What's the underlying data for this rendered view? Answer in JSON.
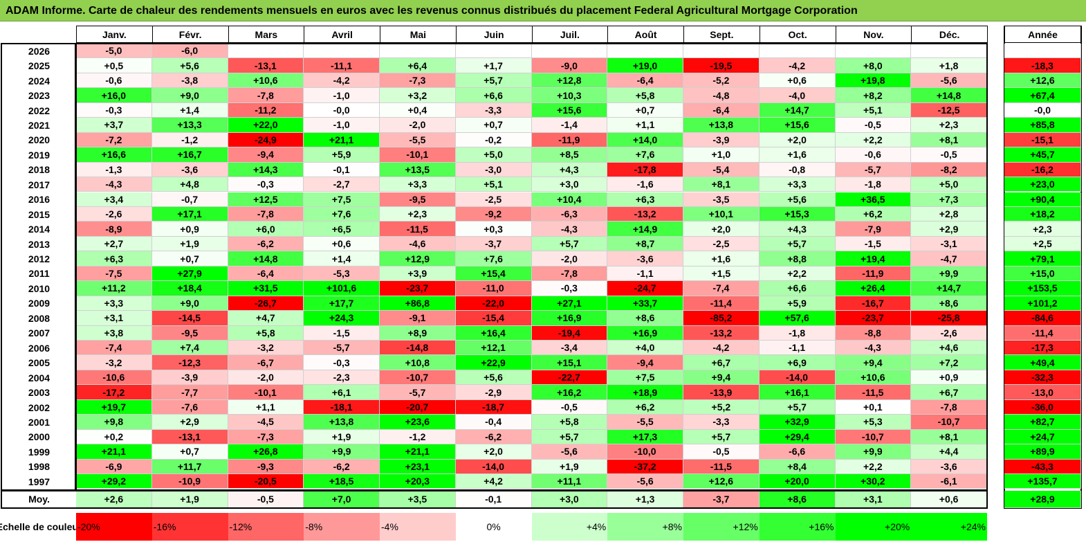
{
  "title": "ADAM Informe. Carte de chaleur des rendements mensuels en euros avec les revenus connus distribués du placement Federal Agricultural Mortgage Corporation",
  "chart_data": {
    "type": "heatmap",
    "months": [
      "Janv.",
      "Févr.",
      "Mars",
      "Avril",
      "Mai",
      "Juin",
      "Juil.",
      "Août",
      "Sept.",
      "Oct.",
      "Nov.",
      "Déc."
    ],
    "year_header": "Année",
    "rows": [
      {
        "year": "2026",
        "values": [
          "-5,0",
          "-6,0",
          "",
          "",
          "",
          "",
          "",
          "",
          "",
          "",
          "",
          ""
        ],
        "annual": ""
      },
      {
        "year": "2025",
        "values": [
          "+0,5",
          "+5,6",
          "-13,1",
          "-11,1",
          "+6,4",
          "+1,7",
          "-9,0",
          "+19,0",
          "-19,5",
          "-4,2",
          "+8,0",
          "+1,8"
        ],
        "annual": "-18,3"
      },
      {
        "year": "2024",
        "values": [
          "-0,6",
          "-3,8",
          "+10,6",
          "-4,2",
          "-7,3",
          "+5,7",
          "+12,8",
          "-6,4",
          "-5,2",
          "+0,6",
          "+19,8",
          "-5,6"
        ],
        "annual": "+12,6"
      },
      {
        "year": "2023",
        "values": [
          "+16,0",
          "+9,0",
          "-7,8",
          "-1,0",
          "+3,2",
          "+6,6",
          "+10,3",
          "+5,8",
          "-4,8",
          "-4,0",
          "+8,2",
          "+14,8"
        ],
        "annual": "+67,4"
      },
      {
        "year": "2022",
        "values": [
          "-0,3",
          "+1,4",
          "-11,2",
          "-0,0",
          "+0,4",
          "-3,3",
          "+15,6",
          "+0,7",
          "-6,4",
          "+14,7",
          "+5,1",
          "-12,5"
        ],
        "annual": "-0,0"
      },
      {
        "year": "2021",
        "values": [
          "+3,7",
          "+13,3",
          "+22,0",
          "-1,0",
          "-2,0",
          "+0,7",
          "-1,4",
          "+1,1",
          "+13,8",
          "+15,6",
          "-0,5",
          "+2,3"
        ],
        "annual": "+85,8"
      },
      {
        "year": "2020",
        "values": [
          "-7,2",
          "-1,2",
          "-24,9",
          "+21,1",
          "-5,5",
          "-0,2",
          "-11,9",
          "+14,0",
          "-3,9",
          "+2,0",
          "+2,2",
          "+8,1"
        ],
        "annual": "-15,1"
      },
      {
        "year": "2019",
        "values": [
          "+16,6",
          "+16,7",
          "-9,4",
          "+5,9",
          "-10,1",
          "+5,0",
          "+8,5",
          "+7,6",
          "+1,0",
          "+1,6",
          "-0,6",
          "-0,5"
        ],
        "annual": "+45,7"
      },
      {
        "year": "2018",
        "values": [
          "-1,3",
          "-3,6",
          "+14,3",
          "-0,1",
          "+13,5",
          "-3,0",
          "+4,3",
          "-17,8",
          "-5,4",
          "-0,8",
          "-5,7",
          "-8,2"
        ],
        "annual": "-16,2"
      },
      {
        "year": "2017",
        "values": [
          "-4,3",
          "+4,8",
          "-0,3",
          "-2,7",
          "+3,3",
          "+5,1",
          "+3,0",
          "-1,6",
          "+8,1",
          "+3,3",
          "-1,8",
          "+5,0"
        ],
        "annual": "+23,0"
      },
      {
        "year": "2016",
        "values": [
          "+3,4",
          "-0,7",
          "+12,5",
          "+7,5",
          "-9,5",
          "-2,5",
          "+10,4",
          "+6,3",
          "-3,5",
          "+5,6",
          "+36,5",
          "+7,3"
        ],
        "annual": "+90,4"
      },
      {
        "year": "2015",
        "values": [
          "-2,6",
          "+17,1",
          "-7,8",
          "+7,6",
          "+2,3",
          "-9,2",
          "-6,3",
          "-13,2",
          "+10,1",
          "+15,3",
          "+6,2",
          "+2,8"
        ],
        "annual": "+18,2"
      },
      {
        "year": "2014",
        "values": [
          "-8,9",
          "+0,9",
          "+6,0",
          "+6,5",
          "-11,5",
          "+0,3",
          "-4,3",
          "+14,9",
          "+2,0",
          "+4,3",
          "-7,9",
          "+2,9"
        ],
        "annual": "+2,3"
      },
      {
        "year": "2013",
        "values": [
          "+2,7",
          "+1,9",
          "-6,2",
          "+0,6",
          "-4,6",
          "-3,7",
          "+5,7",
          "+8,7",
          "-2,5",
          "+5,7",
          "-1,5",
          "-3,1"
        ],
        "annual": "+2,5"
      },
      {
        "year": "2012",
        "values": [
          "+6,3",
          "+0,7",
          "+14,8",
          "+1,4",
          "+12,9",
          "+7,6",
          "-2,0",
          "-3,6",
          "+1,6",
          "+8,8",
          "+19,4",
          "-4,7"
        ],
        "annual": "+79,1"
      },
      {
        "year": "2011",
        "values": [
          "-7,5",
          "+27,9",
          "-6,4",
          "-5,3",
          "+3,9",
          "+15,4",
          "-7,8",
          "-1,1",
          "+1,5",
          "+2,2",
          "-11,9",
          "+9,9"
        ],
        "annual": "+15,0"
      },
      {
        "year": "2010",
        "values": [
          "+11,2",
          "+18,4",
          "+31,5",
          "+101,6",
          "-23,7",
          "-11,0",
          "-0,3",
          "-24,7",
          "-7,4",
          "+6,6",
          "+26,4",
          "+14,7"
        ],
        "annual": "+153,5"
      },
      {
        "year": "2009",
        "values": [
          "+3,3",
          "+9,0",
          "-26,7",
          "+17,7",
          "+86,8",
          "-22,0",
          "+27,1",
          "+33,7",
          "-11,4",
          "+5,9",
          "-16,7",
          "+8,6"
        ],
        "annual": "+101,2"
      },
      {
        "year": "2008",
        "values": [
          "+3,1",
          "-14,5",
          "+4,7",
          "+24,3",
          "-9,1",
          "-15,4",
          "+16,9",
          "+8,6",
          "-85,2",
          "+57,6",
          "-23,7",
          "-25,8"
        ],
        "annual": "-84,6"
      },
      {
        "year": "2007",
        "values": [
          "+3,8",
          "-9,5",
          "+5,8",
          "-1,5",
          "+8,9",
          "+16,4",
          "-19,4",
          "+16,9",
          "-13,2",
          "-1,8",
          "-8,8",
          "-2,6"
        ],
        "annual": "-11,4"
      },
      {
        "year": "2006",
        "values": [
          "-7,4",
          "+7,4",
          "-3,2",
          "-5,7",
          "-14,8",
          "+12,1",
          "-3,4",
          "+4,0",
          "-4,2",
          "-1,1",
          "-4,3",
          "+4,6"
        ],
        "annual": "-17,3"
      },
      {
        "year": "2005",
        "values": [
          "-3,2",
          "-12,3",
          "-6,7",
          "-0,3",
          "+10,8",
          "+22,9",
          "+15,1",
          "-9,4",
          "+6,7",
          "+6,9",
          "+9,4",
          "+7,2"
        ],
        "annual": "+49,4"
      },
      {
        "year": "2004",
        "values": [
          "-10,6",
          "-3,9",
          "-2,0",
          "-2,3",
          "-10,7",
          "+5,6",
          "-22,7",
          "+7,5",
          "+9,4",
          "-14,0",
          "+10,6",
          "+0,9"
        ],
        "annual": "-32,3"
      },
      {
        "year": "2003",
        "values": [
          "-17,2",
          "-7,7",
          "-10,1",
          "+6,1",
          "-5,7",
          "-2,9",
          "+16,2",
          "+18,9",
          "-13,9",
          "+16,1",
          "-11,5",
          "+6,7"
        ],
        "annual": "-13,0"
      },
      {
        "year": "2002",
        "values": [
          "+19,7",
          "-7,6",
          "+1,1",
          "-18,1",
          "-20,7",
          "-18,7",
          "-0,5",
          "+6,2",
          "+5,2",
          "+5,7",
          "+0,1",
          "-7,8"
        ],
        "annual": "-36,0"
      },
      {
        "year": "2001",
        "values": [
          "+9,8",
          "+2,9",
          "-4,5",
          "+13,8",
          "+23,6",
          "-0,4",
          "+5,8",
          "-5,5",
          "-3,3",
          "+32,9",
          "+5,3",
          "-10,7"
        ],
        "annual": "+82,7"
      },
      {
        "year": "2000",
        "values": [
          "+0,2",
          "-13,1",
          "-7,3",
          "+1,9",
          "-1,2",
          "-6,2",
          "+5,7",
          "+17,3",
          "+5,7",
          "+29,4",
          "-10,7",
          "+8,1"
        ],
        "annual": "+24,7"
      },
      {
        "year": "1999",
        "values": [
          "+21,1",
          "+0,7",
          "+26,8",
          "+9,9",
          "+21,1",
          "+2,0",
          "-5,6",
          "-10,0",
          "-0,5",
          "-6,6",
          "+9,9",
          "+4,4"
        ],
        "annual": "+89,9"
      },
      {
        "year": "1998",
        "values": [
          "-6,9",
          "+11,7",
          "-9,3",
          "-6,2",
          "+23,1",
          "-14,0",
          "+1,9",
          "-37,2",
          "-11,5",
          "+8,4",
          "+2,2",
          "-3,6"
        ],
        "annual": "-43,3"
      },
      {
        "year": "1997",
        "values": [
          "+29,2",
          "-10,9",
          "-20,5",
          "+18,5",
          "+20,3",
          "+4,2",
          "+11,1",
          "-5,6",
          "+12,6",
          "+20,0",
          "+30,2",
          "-6,1"
        ],
        "annual": "+135,7"
      }
    ],
    "average": {
      "label": "Moy.",
      "values": [
        "+2,6",
        "+1,9",
        "-0,5",
        "+7,0",
        "+3,5",
        "-0,1",
        "+3,0",
        "+1,3",
        "-3,7",
        "+8,6",
        "+3,1",
        "+0,6"
      ],
      "annual": "+28,9"
    },
    "color_scale": {
      "label": "Echelle de couleur",
      "stops": [
        "-20%",
        "-16%",
        "-12%",
        "-8%",
        "-4%",
        "0%",
        "+4%",
        "+8%",
        "+12%",
        "+16%",
        "+20%",
        "+24%"
      ]
    },
    "colors": {
      "negative": "#ff0000",
      "positive": "#00ff00",
      "neutral": "#ffffff",
      "title_bg": "#92d050"
    }
  }
}
